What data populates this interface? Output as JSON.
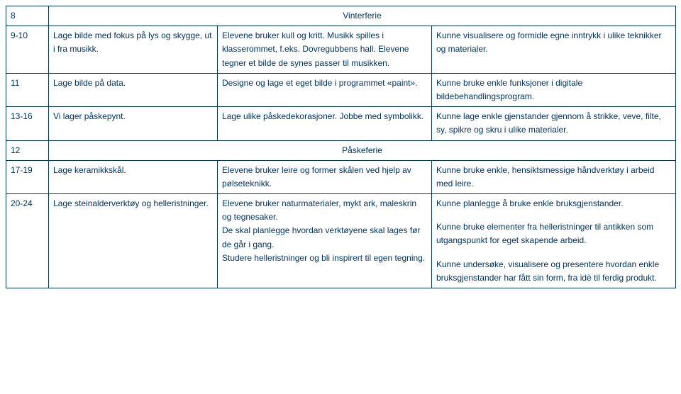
{
  "rows": {
    "r0": {
      "week": "8",
      "holiday": "Vinterferie"
    },
    "r1": {
      "week": "9-10",
      "col2": "Lage bilde med fokus på lys og skygge, ut i fra musikk.",
      "col3": "Elevene bruker kull og kritt. Musikk spilles i klasserommet, f.eks. Dovregubbens hall. Elevene tegner et bilde de synes passer til musikken.",
      "col4": "Kunne visualisere og formidle egne inntrykk i ulike teknikker og materialer."
    },
    "r2": {
      "week": "11",
      "col2": "Lage bilde på data.",
      "col3": "Designe og lage et eget bilde i programmet «paint».",
      "col4": "Kunne bruke enkle funksjoner i digitale bildebehandlingsprogram."
    },
    "r3": {
      "week": "13-16",
      "col2": "Vi lager påskepynt.",
      "col3": "Lage ulike påskedekorasjoner. Jobbe med symbolikk.",
      "col4": "Kunne lage enkle gjenstander gjennom å strikke, veve, filte, sy, spikre og skru i ulike materialer."
    },
    "r4": {
      "week": "12",
      "holiday": "Påskeferie"
    },
    "r5": {
      "week": "17-19",
      "col2": "Lage keramikkskål.",
      "col3": "Elevene bruker leire og former skålen ved hjelp av pølseteknikk.",
      "col4": "Kunne bruke enkle, hensiktsmessige håndverktøy i arbeid med leire."
    },
    "r6": {
      "week": "20-24",
      "col2": "Lage steinalderverktøy og helleristninger.",
      "col3a": "Elevene bruker naturmaterialer, mykt ark, maleskrin og tegnesaker.",
      "col3b": "De skal planlegge hvordan verktøyene skal lages før de går i gang.",
      "col3c": "Studere helleristninger og bli inspirert til egen tegning.",
      "col4a": "Kunne planlegge å bruke enkle bruksgjenstander.",
      "col4b": "Kunne bruke elementer fra helleristninger til antikken som utgangspunkt for eget skapende arbeid.",
      "col4c": "Kunne undersøke, visualisere og presentere hvordan enkle bruksgjenstander har fått sin form, fra idè til ferdig produkt."
    }
  }
}
